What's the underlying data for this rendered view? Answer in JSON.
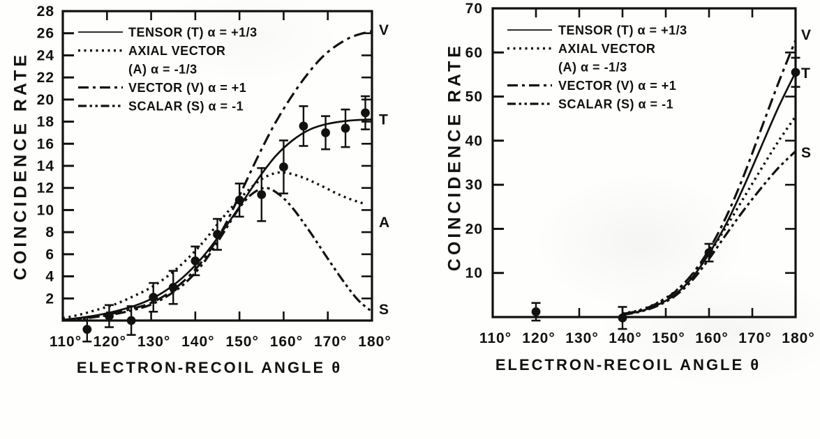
{
  "colors": {
    "ink": "#111111",
    "paper": "#fefefd"
  },
  "chart_data": [
    {
      "id": "left-panel",
      "type": "line",
      "title": "",
      "xlabel": "ELECTRON-RECOIL ANGLE θ",
      "ylabel": "COINCIDENCE RATE",
      "xlim": [
        110,
        180
      ],
      "ylim": [
        0,
        28
      ],
      "grid": false,
      "legend_position": "top-left",
      "x_ticks": [
        110,
        120,
        130,
        140,
        150,
        160,
        170,
        180
      ],
      "x_tick_labels": [
        "110°",
        "120°",
        "130°",
        "140°",
        "150°",
        "160°",
        "170°",
        "180°"
      ],
      "y_ticks": [
        2,
        4,
        6,
        8,
        10,
        12,
        14,
        16,
        18,
        20,
        22,
        24,
        26,
        28
      ],
      "y_tick_labels": [
        "2",
        "4",
        "6",
        "8",
        "10",
        "12",
        "14",
        "16",
        "18",
        "20",
        "22",
        "24",
        "26",
        "28"
      ],
      "legend": [
        {
          "style": "solid",
          "lines": [
            "TENSOR (T) α = +1/3"
          ]
        },
        {
          "style": "dotted",
          "lines": [
            "AXIAL VECTOR",
            "(A) α = -1/3"
          ]
        },
        {
          "style": "dashdot",
          "lines": [
            "VECTOR (V) α = +1"
          ]
        },
        {
          "style": "dashdotdot",
          "lines": [
            "SCALAR (S) α = -1"
          ]
        }
      ],
      "series": [
        {
          "name": "VECTOR",
          "label": "V",
          "label_value": 26.3,
          "style": "dashdot",
          "points": [
            [
              110,
              0.05
            ],
            [
              114,
              0.2
            ],
            [
              118,
              0.4
            ],
            [
              122,
              0.7
            ],
            [
              126,
              1.1
            ],
            [
              130,
              1.6
            ],
            [
              134,
              2.5
            ],
            [
              138,
              3.8
            ],
            [
              142,
              5.6
            ],
            [
              146,
              8.1
            ],
            [
              150,
              11.3
            ],
            [
              154,
              14.7
            ],
            [
              158,
              17.8
            ],
            [
              162,
              20.4
            ],
            [
              166,
              22.6
            ],
            [
              170,
              24.3
            ],
            [
              175,
              25.6
            ],
            [
              180,
              26.2
            ]
          ]
        },
        {
          "name": "TENSOR",
          "label": "T",
          "label_value": 18.2,
          "style": "solid",
          "points": [
            [
              110,
              0.05
            ],
            [
              114,
              0.25
            ],
            [
              118,
              0.5
            ],
            [
              122,
              0.85
            ],
            [
              126,
              1.3
            ],
            [
              130,
              1.95
            ],
            [
              134,
              2.9
            ],
            [
              138,
              4.2
            ],
            [
              142,
              5.9
            ],
            [
              146,
              8.0
            ],
            [
              150,
              10.3
            ],
            [
              154,
              12.7
            ],
            [
              158,
              14.8
            ],
            [
              162,
              16.3
            ],
            [
              166,
              17.3
            ],
            [
              170,
              17.8
            ],
            [
              175,
              18.1
            ],
            [
              180,
              18.2
            ]
          ]
        },
        {
          "name": "AXIAL VECTOR",
          "label": "A",
          "label_value": 8.9,
          "style": "dotted",
          "points": [
            [
              110,
              0.2
            ],
            [
              114,
              0.55
            ],
            [
              118,
              1.0
            ],
            [
              122,
              1.5
            ],
            [
              126,
              2.2
            ],
            [
              130,
              3.0
            ],
            [
              134,
              4.1
            ],
            [
              138,
              5.5
            ],
            [
              142,
              7.2
            ],
            [
              146,
              9.2
            ],
            [
              150,
              11.0
            ],
            [
              154,
              12.5
            ],
            [
              157,
              13.2
            ],
            [
              160,
              13.4
            ],
            [
              164,
              13.0
            ],
            [
              168,
              12.3
            ],
            [
              172,
              11.5
            ],
            [
              175,
              11.0
            ],
            [
              178,
              10.6
            ]
          ]
        },
        {
          "name": "SCALAR",
          "label": "S",
          "label_value": 1.0,
          "style": "dashdotdot",
          "points": [
            [
              110,
              0.05
            ],
            [
              114,
              0.15
            ],
            [
              118,
              0.35
            ],
            [
              122,
              0.6
            ],
            [
              126,
              0.95
            ],
            [
              130,
              1.45
            ],
            [
              134,
              2.3
            ],
            [
              138,
              3.5
            ],
            [
              142,
              5.3
            ],
            [
              146,
              7.7
            ],
            [
              150,
              10.2
            ],
            [
              153,
              11.5
            ],
            [
              156,
              12.0
            ],
            [
              159,
              11.4
            ],
            [
              162,
              10.2
            ],
            [
              166,
              8.0
            ],
            [
              170,
              5.6
            ],
            [
              174,
              3.3
            ],
            [
              177,
              1.8
            ],
            [
              180,
              0.8
            ]
          ]
        }
      ],
      "data_points": [
        [
          115.5,
          -0.8,
          1.1
        ],
        [
          120.5,
          0.4,
          1.0
        ],
        [
          125.5,
          0.0,
          1.3
        ],
        [
          130.5,
          2.1,
          1.3
        ],
        [
          135,
          3.0,
          1.5
        ],
        [
          140,
          5.4,
          1.3
        ],
        [
          145,
          7.8,
          1.4
        ],
        [
          150,
          10.9,
          1.5
        ],
        [
          155,
          11.4,
          2.4
        ],
        [
          160,
          13.9,
          2.4
        ],
        [
          164.5,
          17.6,
          1.8
        ],
        [
          169.5,
          17.0,
          1.5
        ],
        [
          174,
          17.4,
          1.7
        ],
        [
          178.5,
          18.8,
          1.5
        ]
      ]
    },
    {
      "id": "right-panel",
      "type": "line",
      "title": "",
      "xlabel": "ELECTRON-RECOIL ANGLE θ",
      "ylabel": "COINCIDENCE RATE",
      "xlim": [
        110,
        180
      ],
      "ylim": [
        0,
        70
      ],
      "grid": false,
      "legend_position": "top-left",
      "x_ticks": [
        110,
        120,
        130,
        140,
        150,
        160,
        170,
        180
      ],
      "x_tick_labels": [
        "110°",
        "120°",
        "130°",
        "140°",
        "150°",
        "160°",
        "170°",
        "180°"
      ],
      "y_ticks": [
        10,
        20,
        30,
        40,
        50,
        60,
        70
      ],
      "y_tick_labels": [
        "10",
        "20",
        "30",
        "40",
        "50",
        "60",
        "70"
      ],
      "legend": [
        {
          "style": "solid",
          "lines": [
            "TENSOR (T) α = +1/3"
          ]
        },
        {
          "style": "dotted",
          "lines": [
            "AXIAL VECTOR",
            "(A) α = -1/3"
          ]
        },
        {
          "style": "dashdot",
          "lines": [
            "VECTOR (V) α = +1"
          ]
        },
        {
          "style": "dashdotdot",
          "lines": [
            "SCALAR (S) α = -1"
          ]
        }
      ],
      "series": [
        {
          "name": "VECTOR",
          "label": "V",
          "label_value": 64.0,
          "style": "dashdot",
          "points": [
            [
              140,
              0.7
            ],
            [
              144,
              1.5
            ],
            [
              148,
              3.1
            ],
            [
              152,
              5.6
            ],
            [
              156,
              9.6
            ],
            [
              160,
              15.3
            ],
            [
              164,
              22.8
            ],
            [
              168,
              32.0
            ],
            [
              172,
              42.5
            ],
            [
              176,
              53.0
            ],
            [
              180,
              62.8
            ]
          ]
        },
        {
          "name": "TENSOR",
          "label": "T",
          "label_value": 55.3,
          "style": "solid",
          "points": [
            [
              140,
              0.6
            ],
            [
              144,
              1.3
            ],
            [
              148,
              2.7
            ],
            [
              152,
              5.0
            ],
            [
              156,
              8.8
            ],
            [
              160,
              14.4
            ],
            [
              164,
              21.2
            ],
            [
              168,
              29.5
            ],
            [
              172,
              38.5
            ],
            [
              176,
              47.5
            ],
            [
              180,
              55.5
            ]
          ]
        },
        {
          "name": "AXIAL VECTOR",
          "label": "",
          "label_value": 45.5,
          "style": "dotted",
          "points": [
            [
              140,
              0.8
            ],
            [
              144,
              1.6
            ],
            [
              148,
              3.2
            ],
            [
              152,
              5.7
            ],
            [
              156,
              9.4
            ],
            [
              160,
              14.4
            ],
            [
              164,
              20.5
            ],
            [
              168,
              27.0
            ],
            [
              172,
              33.5
            ],
            [
              176,
              39.8
            ],
            [
              180,
              45.5
            ]
          ]
        },
        {
          "name": "SCALAR",
          "label": "S",
          "label_value": 37.3,
          "style": "dashdotdot",
          "points": [
            [
              140,
              0.5
            ],
            [
              144,
              1.2
            ],
            [
              148,
              2.5
            ],
            [
              152,
              4.7
            ],
            [
              156,
              8.2
            ],
            [
              160,
              13.2
            ],
            [
              164,
              18.8
            ],
            [
              168,
              24.2
            ],
            [
              172,
              29.2
            ],
            [
              176,
              33.8
            ],
            [
              180,
              37.6
            ]
          ]
        }
      ],
      "data_points": [
        [
          120,
          1.2,
          2.0
        ],
        [
          140,
          -0.2,
          2.5
        ],
        [
          160,
          14.6,
          2.0
        ],
        [
          180,
          55.5,
          3.3
        ]
      ]
    }
  ]
}
